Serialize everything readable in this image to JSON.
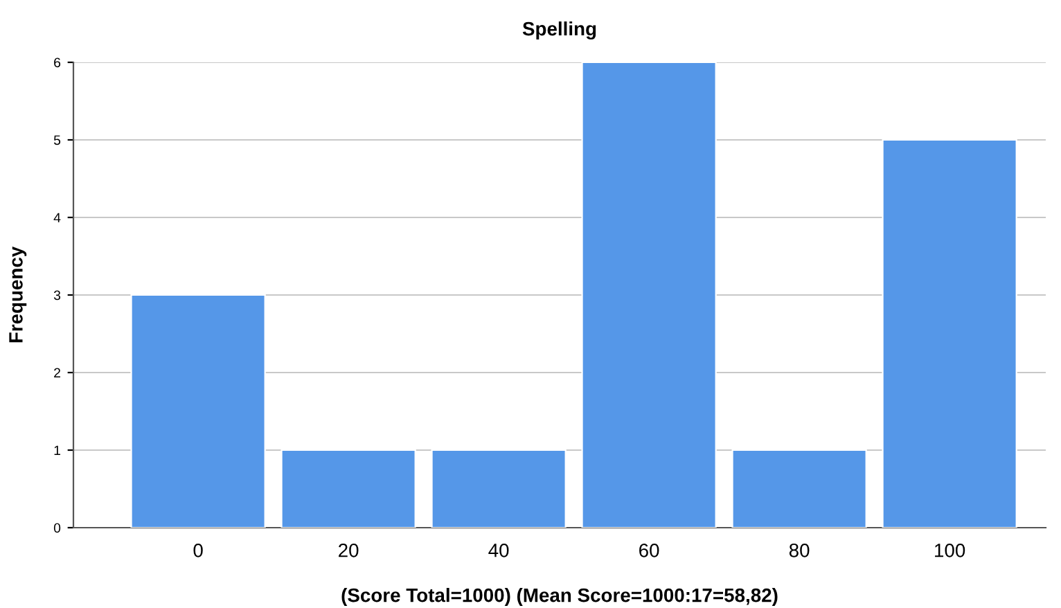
{
  "chart_data": {
    "type": "bar",
    "title": "Spelling",
    "xlabel": "(Score Total=1000) (Mean Score=1000:17=58,82)",
    "ylabel": "Frequency",
    "categories": [
      "0",
      "20",
      "40",
      "60",
      "80",
      "100"
    ],
    "values": [
      3,
      1,
      1,
      6,
      1,
      5
    ],
    "color": "#5597e8",
    "ylim": [
      0,
      6
    ],
    "yticks": [
      0,
      1,
      2,
      3,
      4,
      5,
      6
    ],
    "grid": "y"
  }
}
